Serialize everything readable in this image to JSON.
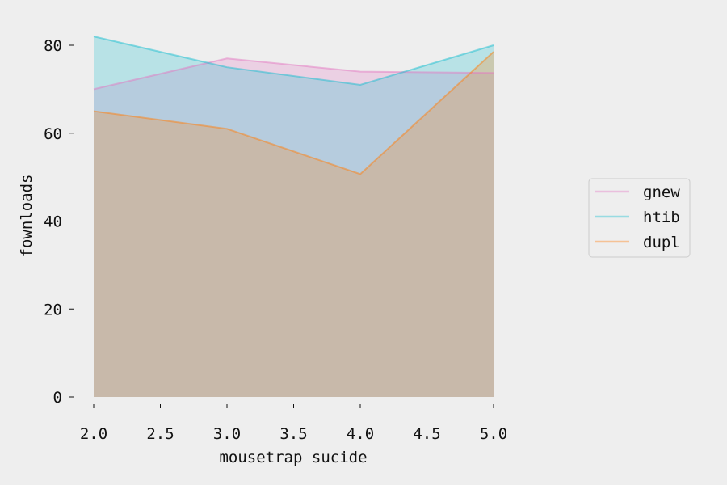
{
  "chart_data": {
    "type": "area",
    "title": "",
    "xlabel": "mousetrap sucide",
    "ylabel": "fownloads",
    "x": [
      2.0,
      3.0,
      4.0,
      5.0
    ],
    "xlim": [
      2.0,
      5.0
    ],
    "ylim": [
      0,
      85
    ],
    "xticks": [
      2.0,
      2.5,
      3.0,
      3.5,
      4.0,
      4.5,
      5.0
    ],
    "xtick_labels": [
      "2.0",
      "2.5",
      "3.0",
      "3.5",
      "4.0",
      "4.5",
      "5.0"
    ],
    "yticks": [
      0,
      20,
      40,
      60,
      80
    ],
    "ytick_labels": [
      "0",
      "20",
      "40",
      "60",
      "80"
    ],
    "grid": false,
    "stacked": false,
    "legend_position": "right",
    "series": [
      {
        "name": "gnew",
        "color": "#e377c2",
        "values": [
          70,
          77,
          74,
          73.7
        ]
      },
      {
        "name": "htib",
        "color": "#17becf",
        "values": [
          82,
          75,
          71,
          80
        ]
      },
      {
        "name": "dupl",
        "color": "#ff7f0e",
        "values": [
          65,
          61,
          50.7,
          78.5
        ]
      }
    ]
  }
}
